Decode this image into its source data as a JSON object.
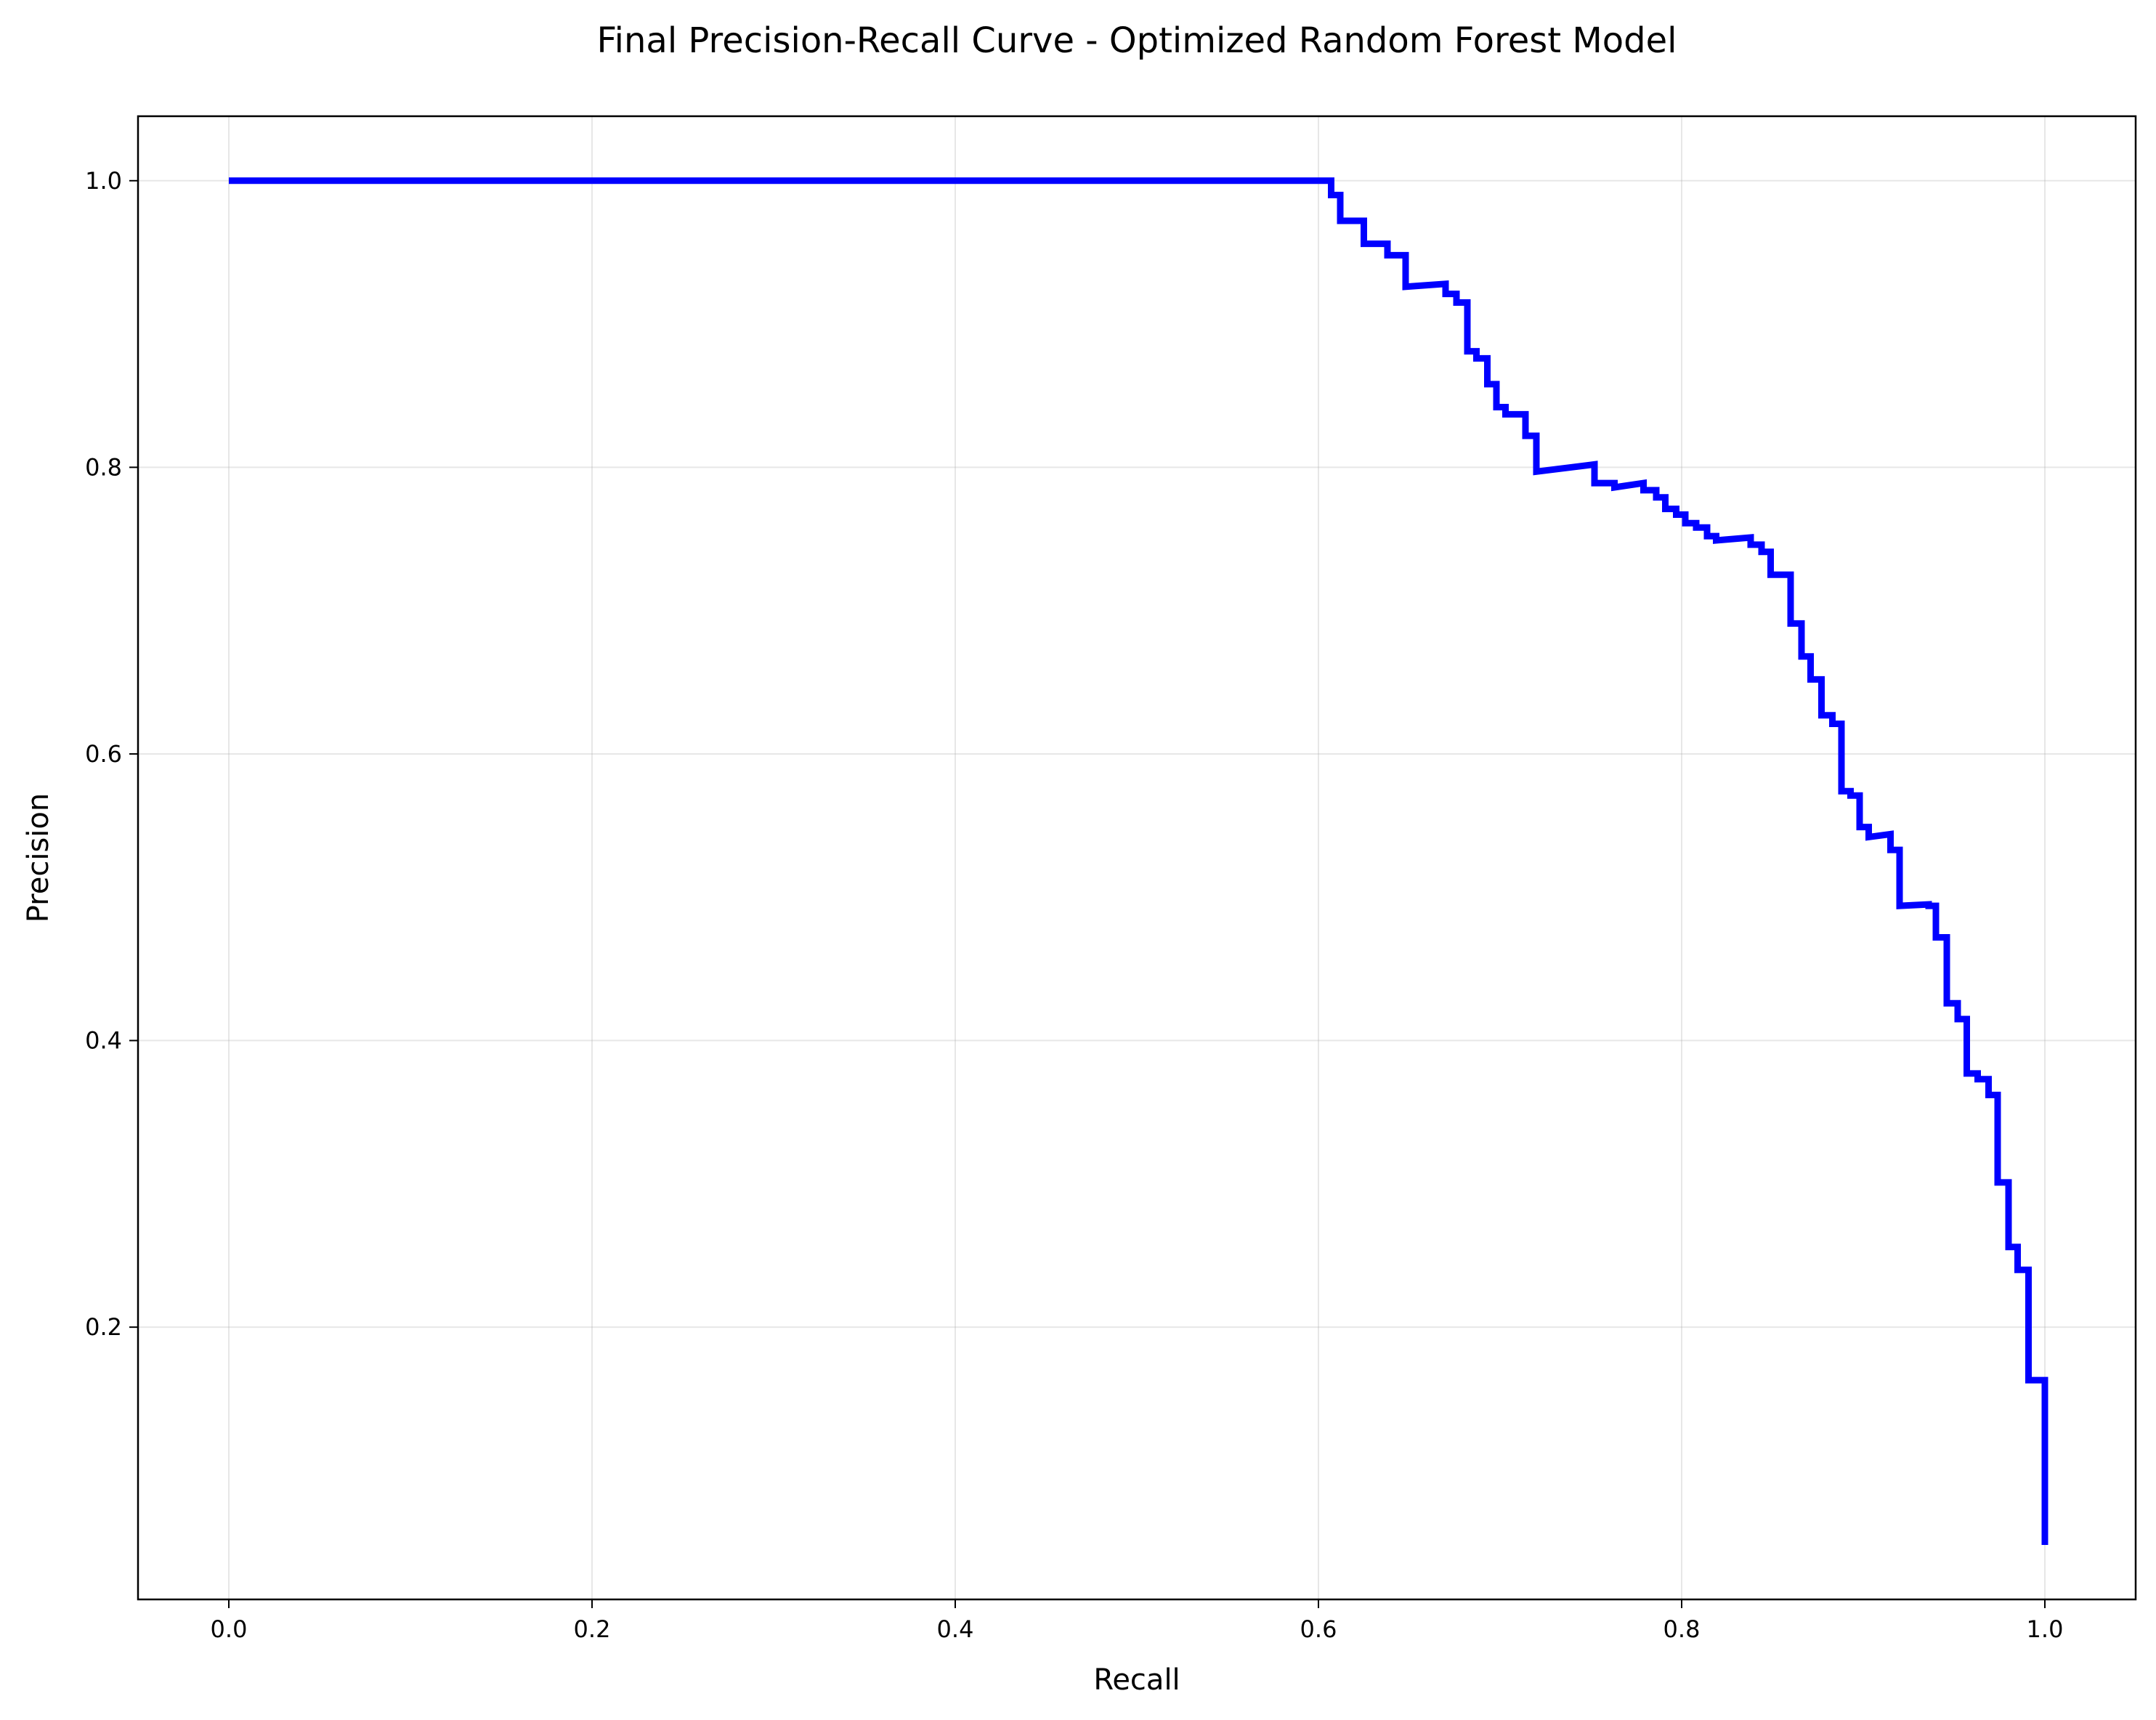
{
  "chart_data": {
    "type": "line",
    "title": "Final Precision-Recall Curve - Optimized Random Forest Model",
    "xlabel": "Recall",
    "ylabel": "Precision",
    "xlim": [
      -0.05,
      1.05
    ],
    "ylim": [
      0.01,
      1.045
    ],
    "xticks": [
      0.0,
      0.2,
      0.4,
      0.6,
      0.8,
      1.0
    ],
    "xtick_labels": [
      "0.0",
      "0.2",
      "0.4",
      "0.6",
      "0.8",
      "1.0"
    ],
    "yticks": [
      0.2,
      0.4,
      0.6,
      0.8,
      1.0
    ],
    "ytick_labels": [
      "0.2",
      "0.4",
      "0.6",
      "0.8",
      "1.0"
    ],
    "grid": true,
    "series": [
      {
        "color": "#0000ff",
        "drawstyle": "steps",
        "points": [
          [
            0.0,
            1.0
          ],
          [
            0.607,
            1.0
          ],
          [
            0.607,
            0.99
          ],
          [
            0.612,
            0.99
          ],
          [
            0.612,
            0.972
          ],
          [
            0.625,
            0.972
          ],
          [
            0.625,
            0.956
          ],
          [
            0.638,
            0.956
          ],
          [
            0.638,
            0.948
          ],
          [
            0.648,
            0.948
          ],
          [
            0.648,
            0.926
          ],
          [
            0.67,
            0.928
          ],
          [
            0.67,
            0.921
          ],
          [
            0.676,
            0.921
          ],
          [
            0.676,
            0.915
          ],
          [
            0.682,
            0.915
          ],
          [
            0.682,
            0.881
          ],
          [
            0.687,
            0.881
          ],
          [
            0.687,
            0.876
          ],
          [
            0.693,
            0.876
          ],
          [
            0.693,
            0.858
          ],
          [
            0.698,
            0.858
          ],
          [
            0.698,
            0.842
          ],
          [
            0.703,
            0.842
          ],
          [
            0.703,
            0.837
          ],
          [
            0.714,
            0.837
          ],
          [
            0.714,
            0.822
          ],
          [
            0.72,
            0.822
          ],
          [
            0.72,
            0.797
          ],
          [
            0.752,
            0.802
          ],
          [
            0.752,
            0.789
          ],
          [
            0.763,
            0.789
          ],
          [
            0.763,
            0.786
          ],
          [
            0.779,
            0.789
          ],
          [
            0.779,
            0.784
          ],
          [
            0.786,
            0.784
          ],
          [
            0.786,
            0.779
          ],
          [
            0.791,
            0.779
          ],
          [
            0.791,
            0.771
          ],
          [
            0.797,
            0.771
          ],
          [
            0.797,
            0.767
          ],
          [
            0.802,
            0.767
          ],
          [
            0.802,
            0.761
          ],
          [
            0.808,
            0.761
          ],
          [
            0.808,
            0.758
          ],
          [
            0.814,
            0.758
          ],
          [
            0.814,
            0.752
          ],
          [
            0.819,
            0.752
          ],
          [
            0.819,
            0.749
          ],
          [
            0.838,
            0.751
          ],
          [
            0.838,
            0.746
          ],
          [
            0.844,
            0.746
          ],
          [
            0.844,
            0.741
          ],
          [
            0.849,
            0.741
          ],
          [
            0.849,
            0.725
          ],
          [
            0.86,
            0.725
          ],
          [
            0.86,
            0.691
          ],
          [
            0.866,
            0.691
          ],
          [
            0.866,
            0.668
          ],
          [
            0.871,
            0.668
          ],
          [
            0.871,
            0.652
          ],
          [
            0.877,
            0.652
          ],
          [
            0.877,
            0.627
          ],
          [
            0.883,
            0.627
          ],
          [
            0.883,
            0.621
          ],
          [
            0.888,
            0.621
          ],
          [
            0.888,
            0.574
          ],
          [
            0.893,
            0.574
          ],
          [
            0.893,
            0.571
          ],
          [
            0.898,
            0.571
          ],
          [
            0.898,
            0.549
          ],
          [
            0.903,
            0.549
          ],
          [
            0.903,
            0.542
          ],
          [
            0.915,
            0.544
          ],
          [
            0.915,
            0.533
          ],
          [
            0.92,
            0.533
          ],
          [
            0.92,
            0.494
          ],
          [
            0.936,
            0.495
          ],
          [
            0.936,
            0.494
          ],
          [
            0.94,
            0.494
          ],
          [
            0.94,
            0.472
          ],
          [
            0.946,
            0.472
          ],
          [
            0.946,
            0.426
          ],
          [
            0.952,
            0.426
          ],
          [
            0.952,
            0.415
          ],
          [
            0.957,
            0.415
          ],
          [
            0.957,
            0.377
          ],
          [
            0.963,
            0.377
          ],
          [
            0.963,
            0.373
          ],
          [
            0.969,
            0.373
          ],
          [
            0.969,
            0.362
          ],
          [
            0.974,
            0.362
          ],
          [
            0.974,
            0.301
          ],
          [
            0.98,
            0.301
          ],
          [
            0.98,
            0.256
          ],
          [
            0.985,
            0.256
          ],
          [
            0.985,
            0.24
          ],
          [
            0.991,
            0.24
          ],
          [
            0.991,
            0.163
          ],
          [
            0.997,
            0.163
          ],
          [
            1.0,
            0.163
          ],
          [
            1.0,
            0.048
          ]
        ]
      }
    ]
  }
}
